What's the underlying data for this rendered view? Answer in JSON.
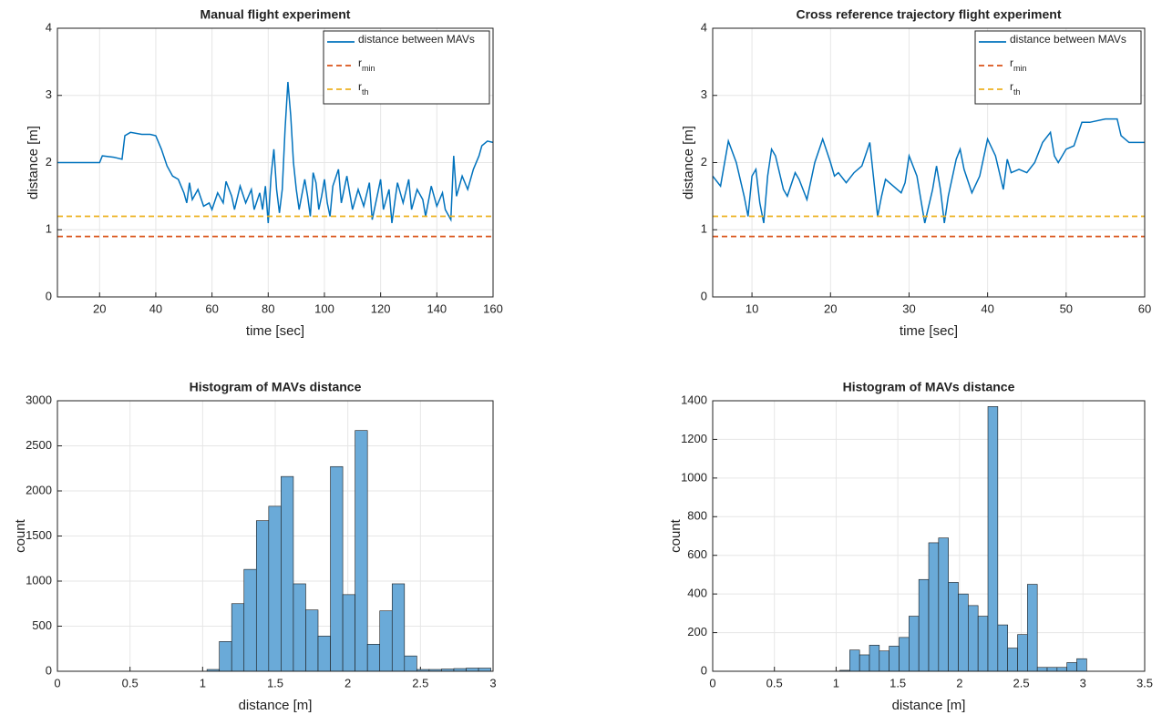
{
  "chart_data": [
    {
      "type": "line",
      "title": "Manual flight experiment",
      "x_label": "time [sec]",
      "y_label": "distance [m]",
      "xlim": [
        5,
        160
      ],
      "xticks": [
        20,
        40,
        60,
        80,
        100,
        120,
        140,
        160
      ],
      "ylim": [
        0,
        4
      ],
      "yticks": [
        0,
        1,
        2,
        3,
        4
      ],
      "grid": true,
      "legend": "upper right",
      "series": [
        {
          "name": "distance between MAVs",
          "color": "#0072BD",
          "x": [
            5,
            20,
            21,
            25,
            28,
            29,
            31,
            35,
            38,
            40,
            42,
            44,
            46,
            48,
            50,
            51,
            52,
            53,
            55,
            57,
            59,
            60,
            62,
            64,
            65,
            67,
            68,
            70,
            72,
            74,
            75,
            77,
            78,
            79,
            80,
            81,
            82,
            83,
            84,
            85,
            86,
            87,
            88,
            89,
            90,
            91,
            93,
            94,
            95,
            96,
            97,
            98,
            99,
            100,
            101,
            102,
            103,
            105,
            106,
            108,
            110,
            112,
            114,
            116,
            117,
            119,
            120,
            121,
            123,
            124,
            126,
            128,
            130,
            131,
            133,
            135,
            136,
            138,
            140,
            142,
            143,
            145,
            146,
            147,
            149,
            151,
            153,
            155,
            156,
            158,
            160
          ],
          "values": [
            2,
            2,
            2.1,
            2.08,
            2.05,
            2.4,
            2.45,
            2.42,
            2.42,
            2.4,
            2.2,
            1.95,
            1.8,
            1.75,
            1.55,
            1.4,
            1.7,
            1.45,
            1.6,
            1.35,
            1.4,
            1.3,
            1.55,
            1.4,
            1.72,
            1.5,
            1.3,
            1.65,
            1.4,
            1.6,
            1.3,
            1.55,
            1.3,
            1.65,
            1.1,
            1.8,
            2.2,
            1.6,
            1.25,
            1.6,
            2.5,
            3.2,
            2.7,
            2,
            1.6,
            1.3,
            1.75,
            1.5,
            1.2,
            1.85,
            1.7,
            1.3,
            1.5,
            1.75,
            1.4,
            1.2,
            1.65,
            1.9,
            1.4,
            1.8,
            1.3,
            1.6,
            1.35,
            1.7,
            1.15,
            1.55,
            1.75,
            1.3,
            1.6,
            1.1,
            1.7,
            1.4,
            1.75,
            1.3,
            1.6,
            1.45,
            1.2,
            1.65,
            1.35,
            1.55,
            1.3,
            1.15,
            2.1,
            1.5,
            1.8,
            1.6,
            1.9,
            2.1,
            2.25,
            2.32,
            2.3
          ]
        },
        {
          "name": "r",
          "name_subscript": "min",
          "color": "#D95319",
          "dashed": true,
          "x": [
            5,
            160
          ],
          "values": [
            0.9,
            0.9
          ]
        },
        {
          "name": "r",
          "name_subscript": "th",
          "color": "#EDB120",
          "dashed": true,
          "x": [
            5,
            160
          ],
          "values": [
            1.2,
            1.2
          ]
        }
      ]
    },
    {
      "type": "line",
      "title": "Cross reference trajectory flight experiment",
      "x_label": "time [sec]",
      "y_label": "distance [m]",
      "xlim": [
        5,
        60
      ],
      "xticks": [
        10,
        20,
        30,
        40,
        50,
        60
      ],
      "ylim": [
        0,
        4
      ],
      "yticks": [
        0,
        1,
        2,
        3,
        4
      ],
      "grid": true,
      "legend": "upper right",
      "series": [
        {
          "name": "distance between MAVs",
          "color": "#0072BD",
          "x": [
            5,
            6,
            7,
            8,
            9,
            9.5,
            10,
            10.5,
            11,
            11.5,
            12,
            12.5,
            13,
            14,
            14.5,
            15.5,
            16,
            17,
            18,
            19,
            20,
            20.5,
            21,
            22,
            23,
            24,
            25,
            26,
            26.5,
            27,
            28,
            29,
            29.5,
            30,
            31,
            32,
            33,
            33.5,
            34,
            34.5,
            35,
            36,
            36.5,
            37,
            38,
            39,
            40,
            41,
            42,
            42.5,
            43,
            44,
            45,
            46,
            47,
            48,
            48.5,
            49,
            50,
            51,
            52,
            53,
            55,
            56.5,
            57,
            58,
            60
          ],
          "values": [
            1.8,
            1.65,
            2.32,
            2,
            1.5,
            1.2,
            1.8,
            1.9,
            1.4,
            1.1,
            1.8,
            2.2,
            2.1,
            1.6,
            1.5,
            1.85,
            1.75,
            1.45,
            2,
            2.35,
            2,
            1.8,
            1.85,
            1.7,
            1.85,
            1.95,
            2.3,
            1.2,
            1.5,
            1.75,
            1.65,
            1.55,
            1.7,
            2.1,
            1.8,
            1.1,
            1.6,
            1.95,
            1.6,
            1.1,
            1.5,
            2.05,
            2.2,
            1.9,
            1.55,
            1.8,
            2.35,
            2.1,
            1.6,
            2.05,
            1.85,
            1.9,
            1.85,
            2,
            2.3,
            2.45,
            2.1,
            2,
            2.2,
            2.25,
            2.6,
            2.6,
            2.65,
            2.65,
            2.4,
            2.3,
            2.3
          ]
        },
        {
          "name": "r",
          "name_subscript": "min",
          "color": "#D95319",
          "dashed": true,
          "x": [
            5,
            60
          ],
          "values": [
            0.9,
            0.9
          ]
        },
        {
          "name": "r",
          "name_subscript": "th",
          "color": "#EDB120",
          "dashed": true,
          "x": [
            5,
            60
          ],
          "values": [
            1.2,
            1.2
          ]
        }
      ]
    },
    {
      "type": "histogram",
      "title": "Histogram of MAVs distance",
      "x_label": "distance [m]",
      "y_label": "count",
      "color": "#6AAAD8",
      "xlim": [
        0,
        3
      ],
      "xticks": [
        0,
        0.5,
        1,
        1.5,
        2,
        2.5,
        3
      ],
      "ylim": [
        0,
        3000
      ],
      "yticks": [
        0,
        500,
        1000,
        1500,
        2000,
        2500,
        3000
      ],
      "grid": true,
      "bins": [
        1.03,
        1.115,
        1.2,
        1.285,
        1.37,
        1.455,
        1.54,
        1.625,
        1.71,
        1.795,
        1.88,
        1.965,
        2.05,
        2.135,
        2.22,
        2.305,
        2.39,
        2.475,
        2.56,
        2.645,
        2.73,
        2.815,
        2.9,
        2.985
      ],
      "values": [
        20,
        330,
        750,
        1130,
        1670,
        1830,
        2160,
        970,
        680,
        390,
        2270,
        850,
        2670,
        300,
        670,
        970,
        170,
        20,
        20,
        25,
        30,
        35,
        35
      ]
    },
    {
      "type": "histogram",
      "title": "Histogram of MAVs distance",
      "x_label": "distance [m]",
      "y_label": "count",
      "color": "#6AAAD8",
      "xlim": [
        0,
        3.5
      ],
      "xticks": [
        0,
        0.5,
        1,
        1.5,
        2,
        2.5,
        3,
        3.5
      ],
      "ylim": [
        0,
        1400
      ],
      "yticks": [
        0,
        200,
        400,
        600,
        800,
        1000,
        1200,
        1400
      ],
      "grid": true,
      "bins": [
        1.03,
        1.11,
        1.19,
        1.27,
        1.35,
        1.43,
        1.51,
        1.59,
        1.67,
        1.75,
        1.83,
        1.91,
        1.99,
        2.07,
        2.15,
        2.23,
        2.31,
        2.39,
        2.47,
        2.55,
        2.63,
        2.71,
        2.79,
        2.87,
        2.95,
        3.03
      ],
      "values": [
        5,
        110,
        85,
        135,
        105,
        130,
        175,
        285,
        475,
        665,
        690,
        460,
        400,
        340,
        285,
        1370,
        240,
        120,
        190,
        450,
        20,
        20,
        20,
        45,
        65
      ]
    }
  ]
}
